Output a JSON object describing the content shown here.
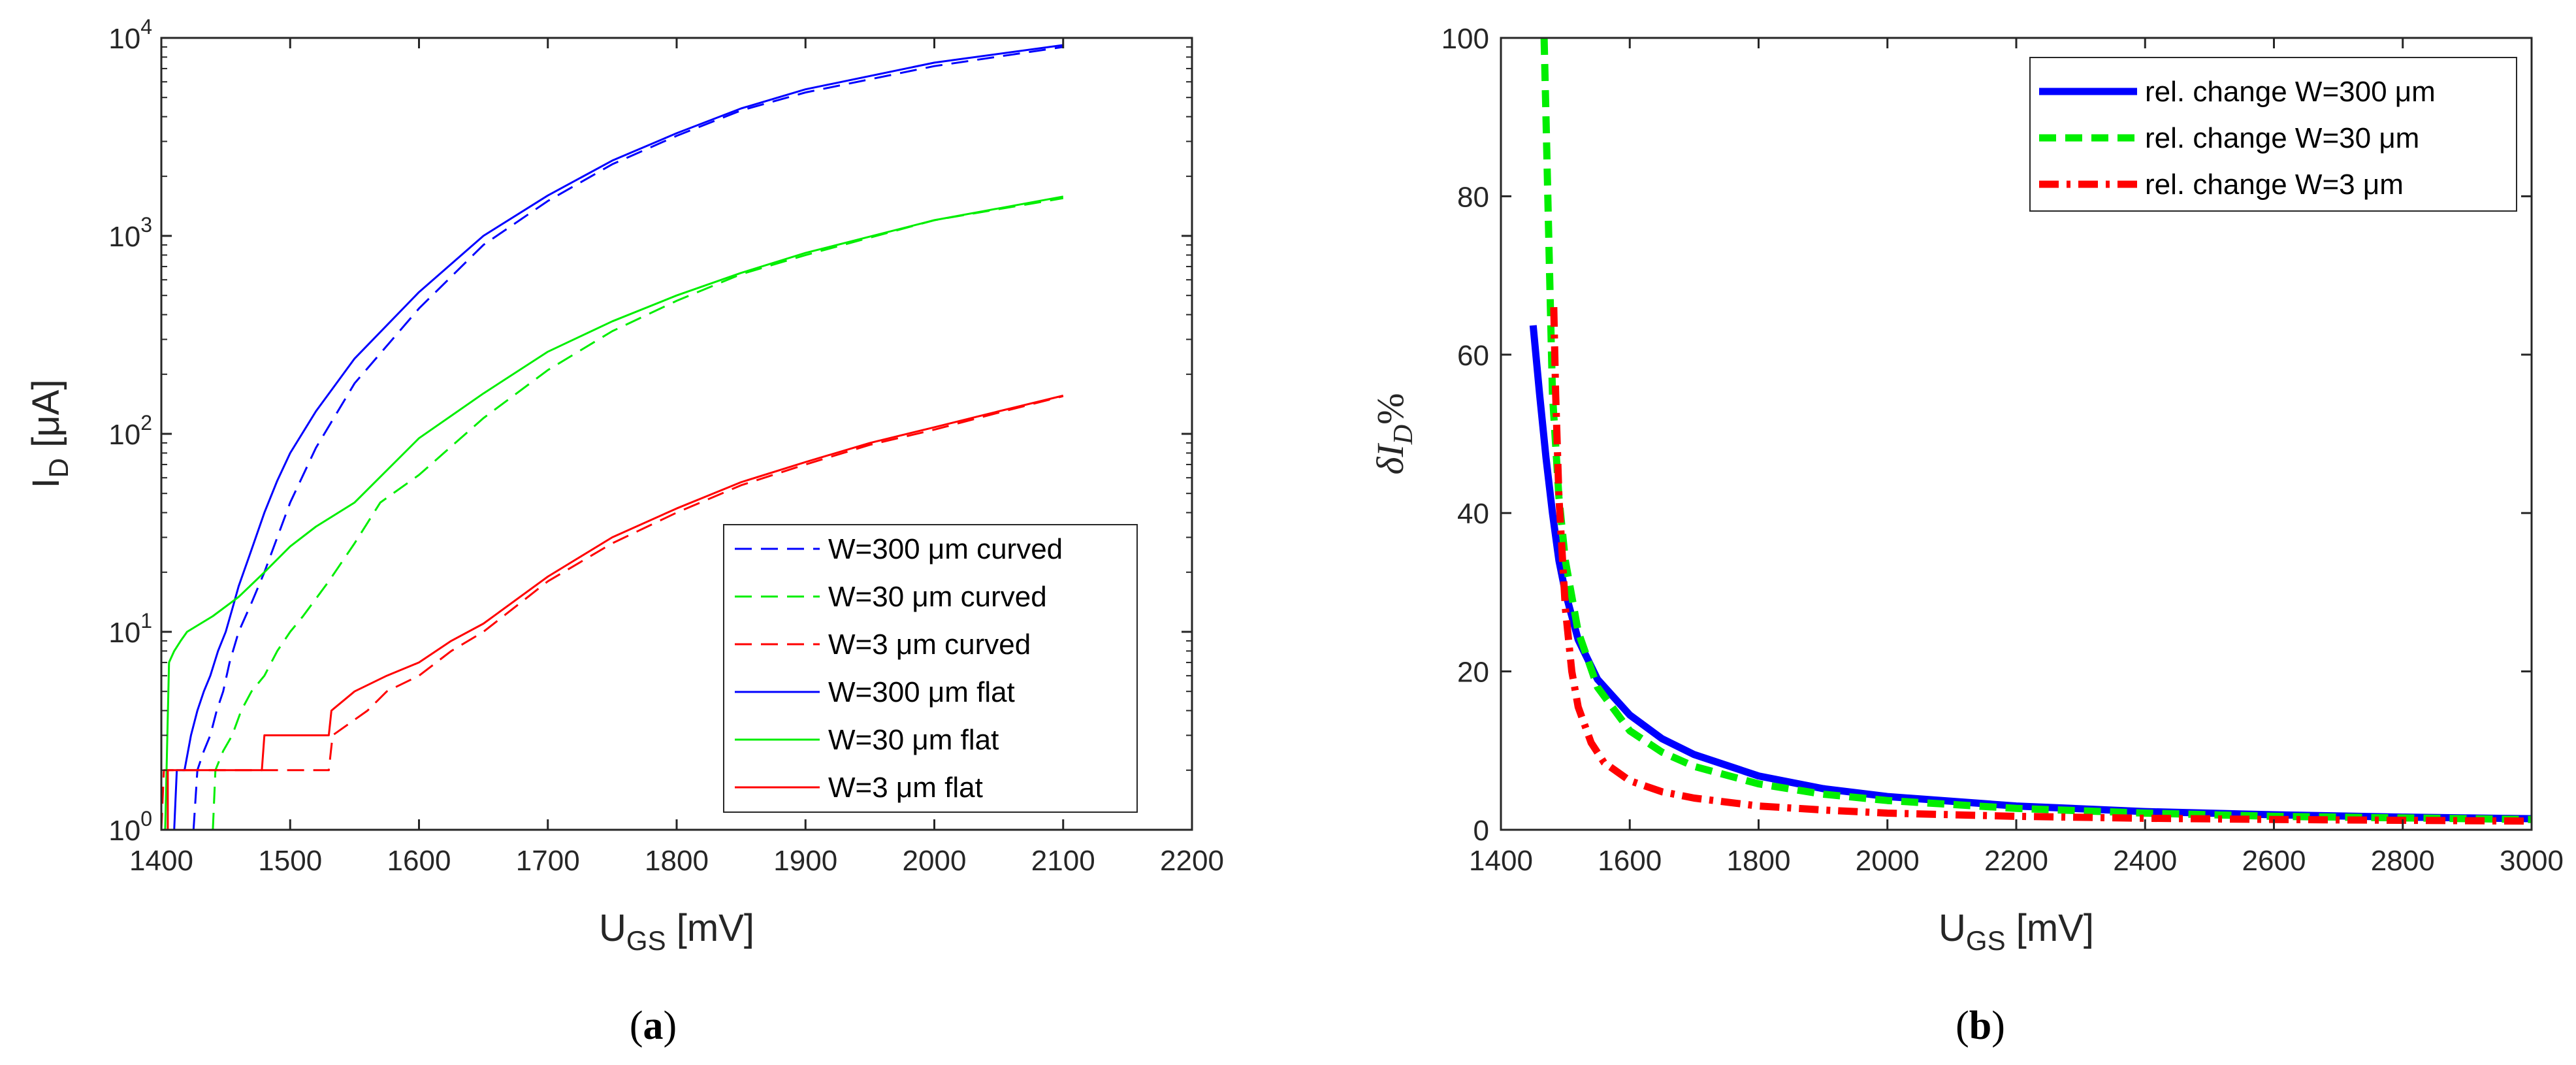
{
  "chart_data": [
    {
      "type": "line",
      "panel": "(a)",
      "caption_open": "(",
      "caption_letter": "a",
      "caption_close": ")",
      "title": "",
      "xlabel_main": "U",
      "xlabel_sub": "GS",
      "xlabel_unit": " [mV]",
      "ylabel_main": "I",
      "ylabel_sub": "D",
      "ylabel_unit": " [μA]",
      "xlim": [
        1400,
        2200
      ],
      "ylim": [
        1,
        10000
      ],
      "yscale": "log",
      "grid": false,
      "legend_position": "lower-right",
      "xticks": [
        1400,
        1500,
        1600,
        1700,
        1800,
        1900,
        2000,
        2100,
        2200
      ],
      "xtick_labels": [
        "1400",
        "1500",
        "1600",
        "1700",
        "1800",
        "1900",
        "2000",
        "2100",
        "2200"
      ],
      "yticks": [
        1,
        10,
        100,
        1000,
        10000
      ],
      "ytick_base": [
        "10",
        "10",
        "10",
        "10",
        "10"
      ],
      "ytick_exp": [
        "0",
        "1",
        "2",
        "3",
        "4"
      ],
      "series": [
        {
          "name": "W=300 μm curved",
          "color": "#0000ff",
          "dash": "dashed",
          "width": 3,
          "x": [
            1425,
            1428,
            1433,
            1438,
            1443,
            1448,
            1453,
            1460,
            1470,
            1480,
            1500,
            1520,
            1550,
            1600,
            1650,
            1700,
            1750,
            1800,
            1850,
            1900,
            2000,
            2100
          ],
          "y": [
            1,
            2,
            2.5,
            3,
            4,
            5,
            7,
            10,
            14,
            20,
            45,
            85,
            180,
            430,
            900,
            1500,
            2300,
            3200,
            4300,
            5300,
            7200,
            9000
          ]
        },
        {
          "name": "W=30 μm curved",
          "color": "#00ee00",
          "dash": "dashed",
          "width": 3,
          "x": [
            1440,
            1442,
            1448,
            1455,
            1462,
            1470,
            1480,
            1490,
            1500,
            1510,
            1530,
            1550,
            1570,
            1600,
            1650,
            1700,
            1750,
            1800,
            1850,
            1900,
            2000,
            2100
          ],
          "y": [
            1,
            2,
            2.5,
            3,
            4,
            5,
            6,
            8,
            10,
            12,
            18,
            28,
            45,
            62,
            120,
            210,
            330,
            470,
            640,
            800,
            1200,
            1550
          ]
        },
        {
          "name": "W=3 μm curved",
          "color": "#ff0000",
          "dash": "dashed",
          "width": 3,
          "x": [
            1400,
            1402,
            1440,
            1470,
            1500,
            1530,
            1533,
            1560,
            1575,
            1600,
            1625,
            1650,
            1700,
            1750,
            1800,
            1850,
            1900,
            1950,
            2000,
            2050,
            2100
          ],
          "y": [
            1,
            2,
            2,
            2,
            2,
            2,
            3,
            4,
            5,
            6,
            8,
            10,
            18,
            28,
            40,
            55,
            70,
            88,
            105,
            128,
            155
          ]
        },
        {
          "name": "W=300 μm flat",
          "color": "#0000ff",
          "dash": "solid",
          "width": 3,
          "x": [
            1410,
            1412,
            1418,
            1423,
            1428,
            1433,
            1438,
            1444,
            1450,
            1455,
            1460,
            1470,
            1480,
            1490,
            1500,
            1520,
            1550,
            1600,
            1650,
            1700,
            1750,
            1800,
            1850,
            1900,
            2000,
            2100
          ],
          "y": [
            1,
            2,
            2,
            3,
            4,
            5,
            6,
            8,
            10,
            13,
            17,
            26,
            40,
            58,
            80,
            130,
            240,
            520,
            1000,
            1600,
            2400,
            3300,
            4400,
            5500,
            7500,
            9200
          ]
        },
        {
          "name": "W=30 μm flat",
          "color": "#00ee00",
          "dash": "solid",
          "width": 3,
          "x": [
            1403,
            1406,
            1410,
            1415,
            1420,
            1440,
            1460,
            1480,
            1500,
            1520,
            1550,
            1600,
            1650,
            1700,
            1750,
            1800,
            1850,
            1900,
            2000,
            2100
          ],
          "y": [
            1,
            7,
            8,
            9,
            10,
            12,
            15,
            20,
            27,
            34,
            45,
            95,
            160,
            260,
            370,
            500,
            650,
            820,
            1200,
            1580
          ]
        },
        {
          "name": "W=3 μm flat",
          "color": "#ff0000",
          "dash": "solid",
          "width": 3,
          "x": [
            1405,
            1405,
            1478,
            1480,
            1530,
            1532,
            1550,
            1575,
            1600,
            1625,
            1650,
            1700,
            1750,
            1800,
            1850,
            1900,
            1950,
            2000,
            2050,
            2100
          ],
          "y": [
            1,
            2,
            2,
            3,
            3,
            4,
            5,
            6,
            7,
            9,
            11,
            19,
            30,
            42,
            57,
            72,
            90,
            108,
            130,
            156
          ]
        }
      ]
    },
    {
      "type": "line",
      "panel": "(b)",
      "caption_open": "(",
      "caption_letter": "b",
      "caption_close": ")",
      "title": "",
      "xlabel_main": "U",
      "xlabel_sub": "GS",
      "xlabel_unit": " [mV]",
      "ylabel_delta": "δ",
      "ylabel_main": "I",
      "ylabel_sub": "D",
      "ylabel_unit": "%",
      "xlim": [
        1400,
        3000
      ],
      "ylim": [
        0,
        100
      ],
      "yscale": "linear",
      "grid": false,
      "legend_position": "top-right",
      "xticks": [
        1400,
        1600,
        1800,
        2000,
        2200,
        2400,
        2600,
        2800,
        3000
      ],
      "xtick_labels": [
        "1400",
        "1600",
        "1800",
        "2000",
        "2200",
        "2400",
        "2600",
        "2800",
        "3000"
      ],
      "yticks": [
        0,
        20,
        40,
        60,
        80,
        100
      ],
      "ytick_labels": [
        "0",
        "20",
        "40",
        "60",
        "80",
        "100"
      ],
      "series": [
        {
          "name": "rel. change W=300 μm",
          "color": "#0000ff",
          "dash": "solid",
          "width": 11,
          "x": [
            1450,
            1460,
            1470,
            1480,
            1490,
            1500,
            1520,
            1550,
            1600,
            1650,
            1700,
            1800,
            1900,
            2000,
            2200,
            2400,
            2600,
            2800,
            3000
          ],
          "y": [
            63.7,
            55,
            47,
            40,
            34,
            30,
            24,
            19,
            14.5,
            11.5,
            9.5,
            6.8,
            5.2,
            4.2,
            3.0,
            2.3,
            1.9,
            1.6,
            1.4
          ]
        },
        {
          "name": "rel. change W=30 μm",
          "color": "#00ee00",
          "dash": "dashed",
          "width": 11,
          "x": [
            1467,
            1470,
            1475,
            1480,
            1490,
            1500,
            1520,
            1550,
            1600,
            1650,
            1700,
            1800,
            1900,
            2000,
            2200,
            2400,
            2600,
            2800,
            3000
          ],
          "y": [
            100,
            90,
            72,
            55,
            42,
            34,
            25,
            18,
            12.5,
            9.8,
            8,
            5.8,
            4.5,
            3.7,
            2.7,
            2.1,
            1.7,
            1.5,
            1.3
          ]
        },
        {
          "name": "rel. change W=3 μm",
          "color": "#ff0000",
          "dash": "dashdot",
          "width": 11,
          "x": [
            1482,
            1485,
            1490,
            1500,
            1510,
            1520,
            1540,
            1560,
            1600,
            1650,
            1700,
            1800,
            1900,
            2000,
            2200,
            2400,
            2600,
            2800,
            3000
          ],
          "y": [
            66,
            55,
            42,
            28,
            20,
            15.5,
            11,
            8.5,
            6.2,
            4.8,
            4.0,
            3.0,
            2.5,
            2.1,
            1.7,
            1.45,
            1.3,
            1.2,
            1.1
          ]
        }
      ]
    }
  ]
}
